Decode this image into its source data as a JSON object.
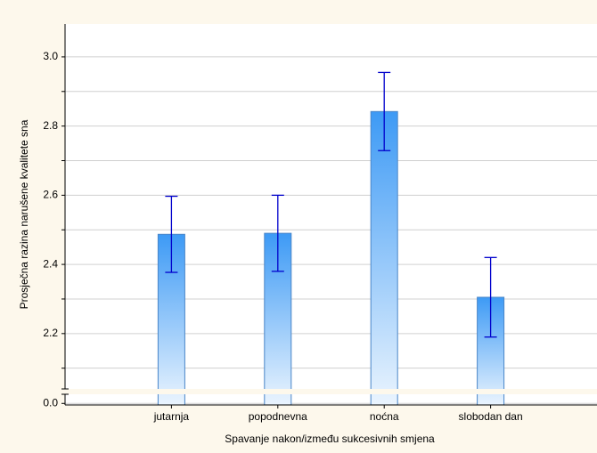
{
  "chart_data": {
    "type": "bar",
    "categories": [
      "jutarnja",
      "popodnevna",
      "noćna",
      "slobodan dan"
    ],
    "values": [
      2.487,
      2.49,
      2.842,
      2.305
    ],
    "errors": [
      0.11,
      0.11,
      0.113,
      0.115
    ],
    "color": "#3d9af5",
    "error_color": "#0000cc",
    "x_label": "Spavanje nakon/između sukcesivnih smjena",
    "y_label": "Prosječna razina narušene kvalitete sna",
    "ylim": [
      2.04,
      3.095
    ],
    "yticks": [
      2.2,
      2.4,
      2.6,
      {
        "value": 2.8,
        "label": "2.8"
      },
      {
        "value": 3,
        "label": "3.0"
      }
    ],
    "minor_yticks": [
      2.1,
      2.3,
      2.5,
      2.7,
      2.9
    ],
    "lower_ylim": [
      -0.005,
      0.03
    ],
    "lower_yticks": [
      {
        "value": 0,
        "label": "0.0"
      }
    ],
    "grid": true
  }
}
